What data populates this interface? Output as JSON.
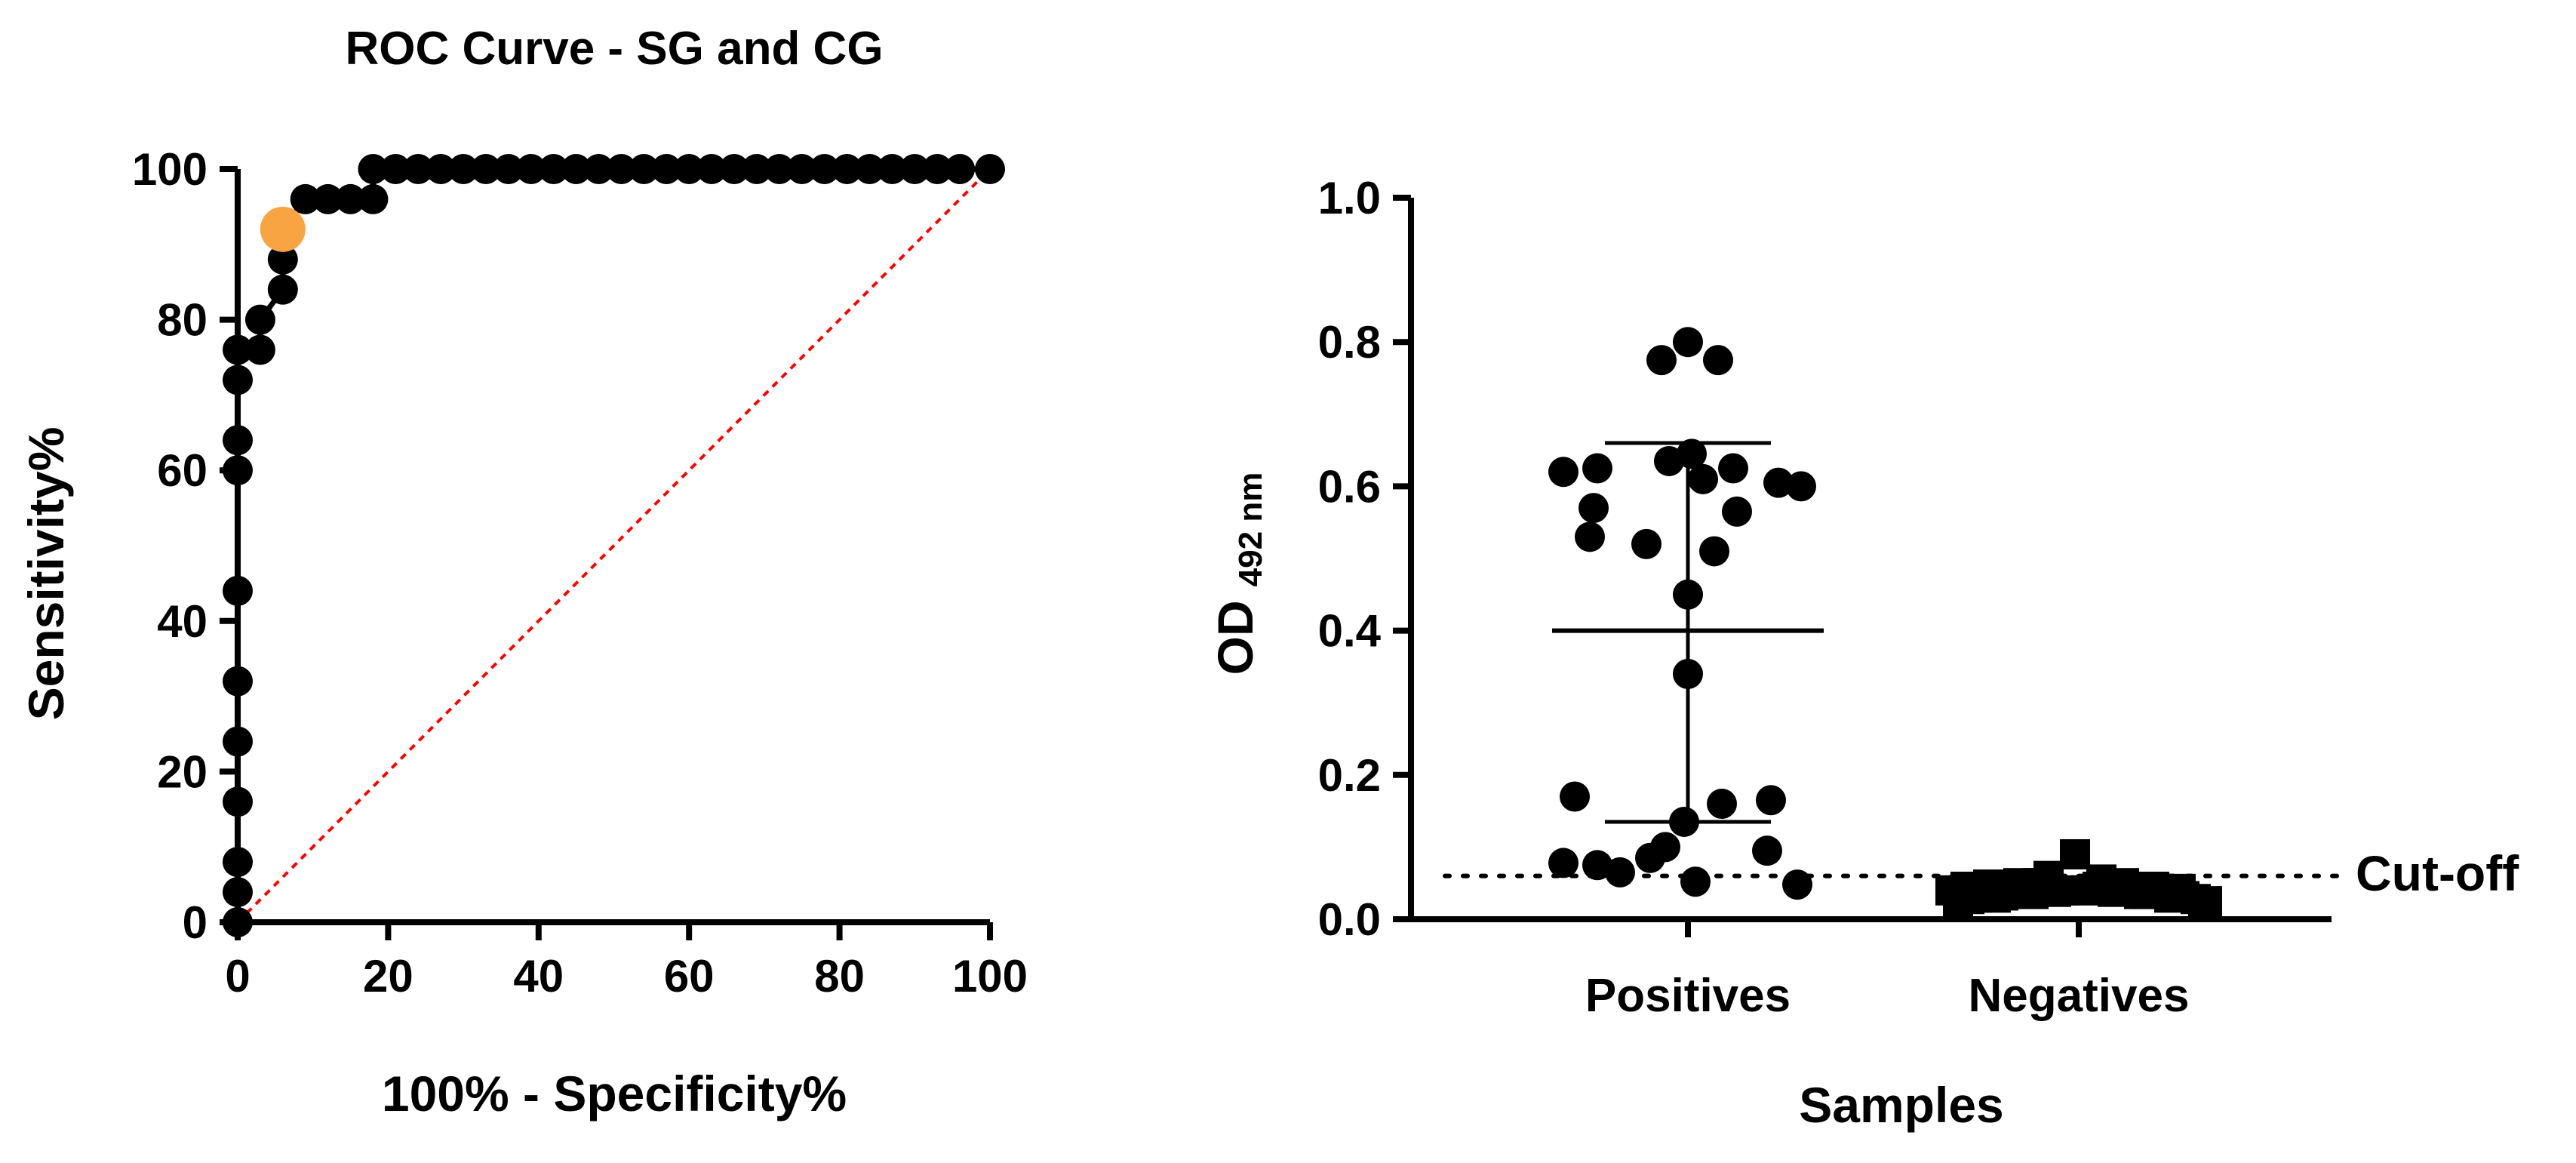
{
  "chart_data": [
    {
      "type": "line",
      "title": "ROC Curve - SG and CG",
      "xlabel": "100% - Specificity%",
      "ylabel": "Sensitivity%",
      "xlim": [
        0,
        100
      ],
      "ylim": [
        0,
        100
      ],
      "xticks": [
        0,
        20,
        40,
        60,
        80,
        100
      ],
      "yticks": [
        0,
        20,
        40,
        60,
        80,
        100
      ],
      "grid": false,
      "series": [
        {
          "x": [
            0,
            0,
            0,
            0,
            0,
            0,
            0,
            0,
            0,
            0,
            0,
            3,
            3,
            6,
            6,
            6,
            9,
            12,
            15,
            18,
            18,
            21,
            24,
            27,
            30,
            33,
            36,
            39,
            42,
            45,
            48,
            51,
            54,
            57,
            60,
            63,
            66,
            69,
            72,
            75,
            78,
            81,
            84,
            87,
            90,
            93,
            96,
            100
          ],
          "y": [
            0,
            4,
            8,
            16,
            24,
            32,
            44,
            60,
            64,
            72,
            76,
            76,
            80,
            84,
            88,
            92,
            96,
            96,
            96,
            96,
            100,
            100,
            100,
            100,
            100,
            100,
            100,
            100,
            100,
            100,
            100,
            100,
            100,
            100,
            100,
            100,
            100,
            100,
            100,
            100,
            100,
            100,
            100,
            100,
            100,
            100,
            100,
            100
          ],
          "color": "#000000"
        }
      ],
      "highlight_point": {
        "x": 6,
        "y": 92,
        "color": "#F9A443"
      },
      "reference_line": {
        "x": [
          0,
          100
        ],
        "y": [
          0,
          100
        ],
        "color": "#FF0000",
        "style": "dotted"
      }
    },
    {
      "type": "scatter",
      "title": "",
      "xlabel": "Samples",
      "ylabel_main": "OD",
      "ylabel_sub": "492 nm",
      "ylim": [
        0,
        1.0
      ],
      "yticks": [
        "0.0",
        "0.2",
        "0.4",
        "0.6",
        "0.8",
        "1.0"
      ],
      "categories": [
        "Positives",
        "Negatives"
      ],
      "grid": false,
      "series": [
        {
          "marker": "circle",
          "category": "Positives",
          "values": [
            0.8,
            0.775,
            0.775,
            0.645,
            0.635,
            0.625,
            0.625,
            0.62,
            0.61,
            0.605,
            0.6,
            0.57,
            0.565,
            0.53,
            0.52,
            0.51,
            0.45,
            0.34,
            0.17,
            0.165,
            0.16,
            0.135,
            0.1,
            0.095,
            0.085,
            0.078,
            0.075,
            0.065,
            0.052,
            0.048
          ],
          "mean": 0.4,
          "sd_upper": 0.66,
          "sd_lower": 0.135
        },
        {
          "marker": "square",
          "category": "Negatives",
          "values": [
            0.09,
            0.06,
            0.055,
            0.05,
            0.05,
            0.048,
            0.045,
            0.045,
            0.042,
            0.04,
            0.04,
            0.038,
            0.035,
            0.035,
            0.033,
            0.03,
            0.03,
            0.028,
            0.025,
            0.025,
            0.04,
            0.045,
            0.05,
            0.035,
            0.03,
            0.042,
            0.038,
            0.032,
            0.028,
            0.022
          ]
        }
      ],
      "cutoff": {
        "value": 0.06,
        "label": "Cut-off",
        "style": "dotted"
      }
    }
  ]
}
